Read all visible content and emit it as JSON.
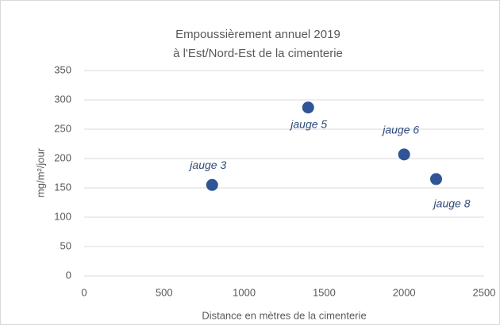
{
  "chart_data": {
    "type": "scatter",
    "title": [
      "Empoussièrement annuel 2019",
      "à l'Est/Nord-Est de la cimenterie"
    ],
    "x_label": "Distance en mètres de la cimenterie",
    "y_label": "mg/m²/jour",
    "x": [
      800,
      1400,
      2000,
      2200
    ],
    "values": [
      155,
      287,
      207,
      165
    ],
    "point_labels": [
      "jauge 3",
      "jauge 5",
      "jauge 6",
      "jauge 8"
    ],
    "color": "#2f5597",
    "xlim": [
      0,
      2500
    ],
    "xticks": [
      0,
      500,
      1000,
      1500,
      2000,
      2500
    ],
    "ylim": [
      0,
      350
    ],
    "yticks": [
      0,
      50,
      100,
      150,
      200,
      250,
      300,
      350
    ],
    "grid": true
  }
}
